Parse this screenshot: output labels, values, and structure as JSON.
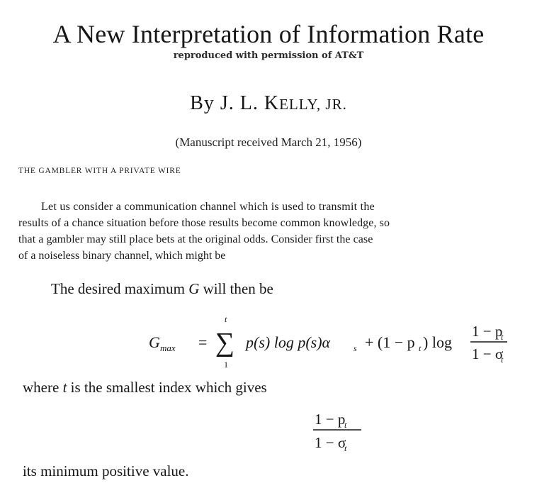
{
  "paper": {
    "title": "A New Interpretation of Information Rate",
    "subtitle": "reproduced with permission of AT&T",
    "author": {
      "prefix": "By J. L. ",
      "surname_initial": "K",
      "surname_rest": "ELLY",
      "suffix": ", JR."
    },
    "received": "(Manuscript received March 21, 1956)",
    "section_heading": "THE GAMBLER WITH A PRIVATE WIRE",
    "paragraph_lines": [
      "Let us consider a communication channel which is used to transmit the",
      "results of a chance situation before those results become common knowledge, so",
      "that a gambler may still place bets at the original odds. Consider first the case",
      "of a noiseless binary channel, which might be"
    ],
    "desired_text": {
      "before": "The desired maximum ",
      "variable": "G",
      "after": " will then be"
    },
    "formula": {
      "lhs_symbol": "G",
      "lhs_subscript": "max",
      "equals": "=",
      "sum_upper": "t",
      "sum_lower": "1",
      "sum_symbol": "∑",
      "term1": "p(s) log p(s)α",
      "term1_subscript": "s",
      "term2": "+ (1 − p",
      "term2_subscript": "t",
      "term2_close": ") log",
      "frac_num": "1 − p",
      "frac_num_sub": "t",
      "frac_den": "1 − σ",
      "frac_den_sub": "t"
    },
    "where_text": {
      "before": "where ",
      "variable": "t",
      "after": " is the smallest index which gives"
    },
    "fraction2": {
      "num": "1 − p",
      "num_sub": "t",
      "den": "1 − σ",
      "den_sub": "t"
    },
    "closing_text": "its minimum positive value."
  }
}
